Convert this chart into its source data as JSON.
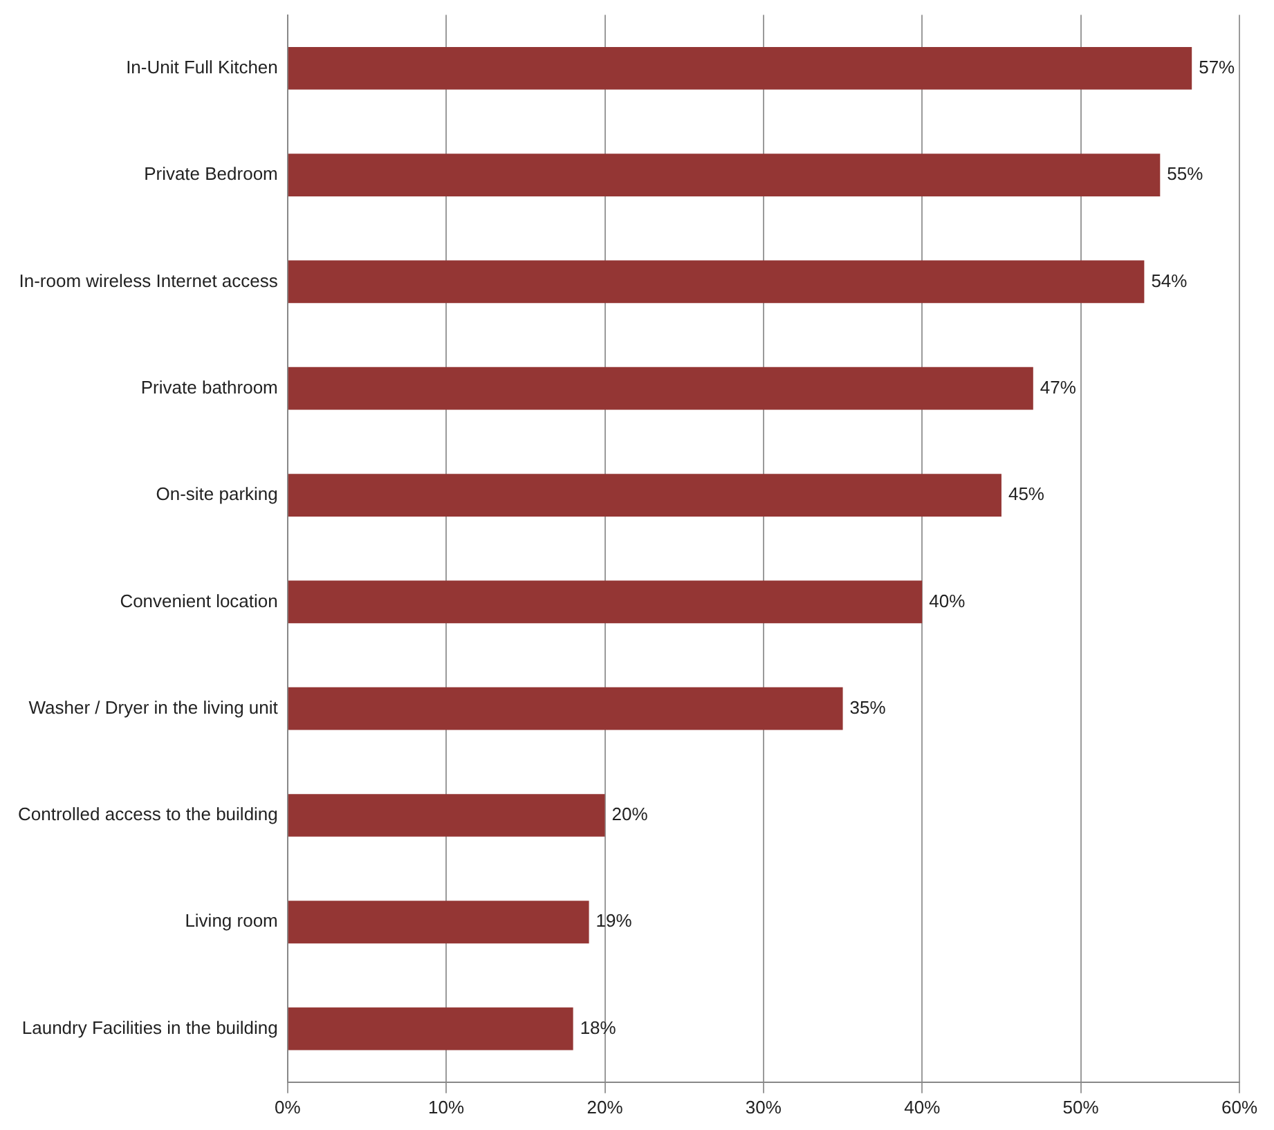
{
  "chart_data": {
    "type": "bar",
    "orientation": "horizontal",
    "categories": [
      "In-Unit Full Kitchen",
      "Private Bedroom",
      "In-room wireless Internet access",
      "Private bathroom",
      "On-site parking",
      "Convenient location",
      "Washer / Dryer in the living unit",
      "Controlled access to the building",
      "Living room",
      "Laundry Facilities in the building"
    ],
    "values": [
      57,
      55,
      54,
      47,
      45,
      40,
      35,
      20,
      19,
      18
    ],
    "value_labels": [
      "57%",
      "55%",
      "54%",
      "47%",
      "45%",
      "40%",
      "35%",
      "20%",
      "19%",
      "18%"
    ],
    "color": "#943634",
    "xlim": [
      0,
      60
    ],
    "xticks": [
      {
        "value": 0,
        "label": "0%"
      },
      {
        "value": 10,
        "label": "10%"
      },
      {
        "value": 20,
        "label": "20%"
      },
      {
        "value": 30,
        "label": "30%"
      },
      {
        "value": 40,
        "label": "40%"
      },
      {
        "value": 50,
        "label": "50%"
      },
      {
        "value": 60,
        "label": "60%"
      }
    ],
    "grid": "x",
    "legend": false
  }
}
